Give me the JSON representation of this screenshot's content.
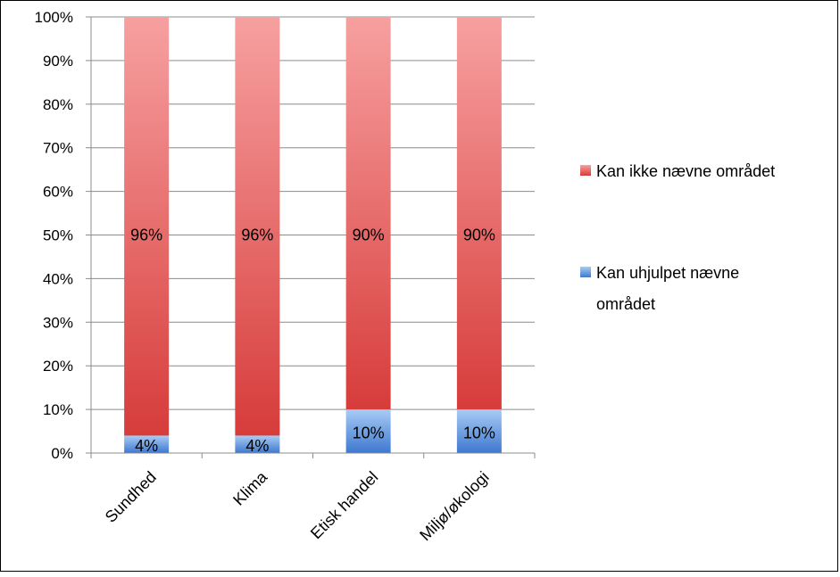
{
  "chart_data": {
    "type": "bar",
    "stacked": true,
    "percent": true,
    "categories": [
      "Sundhed",
      "Klima",
      "Etisk handel",
      "Miljø/økologi"
    ],
    "series": [
      {
        "name": "Kan uhjulpet nævne området",
        "values": [
          4,
          4,
          10,
          10
        ],
        "labels": [
          "4%",
          "4%",
          "10%",
          "10%"
        ],
        "color": "#4f86d6"
      },
      {
        "name": "Kan ikke nævne området",
        "values": [
          96,
          96,
          90,
          90
        ],
        "labels": [
          "96%",
          "96%",
          "90%",
          "90%"
        ],
        "color": "#d94a46"
      }
    ],
    "ylim": [
      0,
      100
    ],
    "yticks": [
      "0%",
      "10%",
      "20%",
      "30%",
      "40%",
      "50%",
      "60%",
      "70%",
      "80%",
      "90%",
      "100%"
    ],
    "grid": true,
    "legend": [
      {
        "text": "Kan ikke nævne området",
        "color": "#d94a46"
      },
      {
        "text_lines": [
          "Kan uhjulpet nævne",
          "området"
        ],
        "color": "#4f86d6"
      }
    ],
    "legend_position": "right"
  }
}
